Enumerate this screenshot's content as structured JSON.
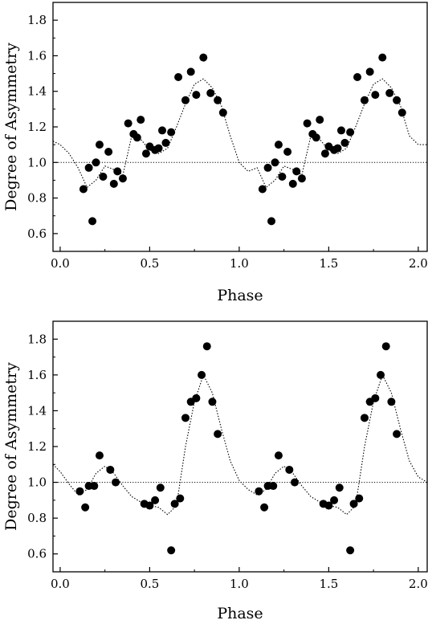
{
  "chart_data": [
    {
      "type": "scatter",
      "xlabel": "Phase",
      "ylabel": "Degree of Asymmetry",
      "xlim": [
        -0.04,
        2.05
      ],
      "ylim": [
        0.5,
        1.9
      ],
      "xticks": [
        0.0,
        0.5,
        1.0,
        1.5,
        2.0
      ],
      "xtick_labels": [
        "0.0",
        "0.5",
        "1.0",
        "1.5",
        "2.0"
      ],
      "yticks": [
        0.6,
        0.8,
        1.0,
        1.2,
        1.4,
        1.6,
        1.8
      ],
      "ytick_labels": [
        "0.6",
        "0.8",
        "1.0",
        "1.2",
        "1.4",
        "1.6",
        "1.8"
      ],
      "reference_line": 1.0,
      "grid": false,
      "series": [
        {
          "kind": "points",
          "x": [
            0.13,
            0.16,
            0.18,
            0.2,
            0.22,
            0.24,
            0.27,
            0.3,
            0.32,
            0.35,
            0.38,
            0.41,
            0.43,
            0.45,
            0.48,
            0.5,
            0.53,
            0.55,
            0.57,
            0.59,
            0.62,
            0.66,
            0.7,
            0.73,
            0.76,
            0.8,
            0.84,
            0.88,
            0.91,
            1.13,
            1.16,
            1.18,
            1.2,
            1.22,
            1.24,
            1.27,
            1.3,
            1.32,
            1.35,
            1.38,
            1.41,
            1.43,
            1.45,
            1.48,
            1.5,
            1.53,
            1.55,
            1.57,
            1.59,
            1.62,
            1.66,
            1.7,
            1.73,
            1.76,
            1.8,
            1.84,
            1.88,
            1.91
          ],
          "y": [
            0.85,
            0.97,
            0.67,
            1.0,
            1.1,
            0.92,
            1.06,
            0.88,
            0.95,
            0.91,
            1.22,
            1.16,
            1.14,
            1.24,
            1.05,
            1.09,
            1.07,
            1.08,
            1.18,
            1.11,
            1.17,
            1.48,
            1.35,
            1.51,
            1.38,
            1.59,
            1.39,
            1.35,
            1.28,
            0.85,
            0.97,
            0.67,
            1.0,
            1.1,
            0.92,
            1.06,
            0.88,
            0.95,
            0.91,
            1.22,
            1.16,
            1.14,
            1.24,
            1.05,
            1.09,
            1.07,
            1.08,
            1.18,
            1.11,
            1.17,
            1.48,
            1.35,
            1.51,
            1.38,
            1.59,
            1.39,
            1.35,
            1.28
          ]
        },
        {
          "kind": "dotted-fit",
          "x": [
            -0.04,
            0.0,
            0.05,
            0.1,
            0.15,
            0.2,
            0.25,
            0.3,
            0.35,
            0.4,
            0.45,
            0.5,
            0.55,
            0.6,
            0.65,
            0.7,
            0.75,
            0.8,
            0.85,
            0.9,
            0.95,
            1.0,
            1.05,
            1.1,
            1.15,
            1.2,
            1.25,
            1.3,
            1.35,
            1.4,
            1.45,
            1.5,
            1.55,
            1.6,
            1.65,
            1.7,
            1.75,
            1.8,
            1.85,
            1.9,
            1.95,
            2.0,
            2.05
          ],
          "y": [
            1.12,
            1.1,
            1.05,
            0.97,
            0.86,
            0.9,
            0.98,
            0.96,
            0.93,
            1.15,
            1.13,
            1.07,
            1.05,
            1.08,
            1.2,
            1.33,
            1.44,
            1.47,
            1.42,
            1.32,
            1.15,
            1.0,
            0.95,
            0.97,
            0.86,
            0.9,
            0.98,
            0.96,
            0.93,
            1.15,
            1.13,
            1.07,
            1.05,
            1.08,
            1.2,
            1.33,
            1.44,
            1.47,
            1.42,
            1.32,
            1.15,
            1.1,
            1.1
          ]
        }
      ]
    },
    {
      "type": "scatter",
      "xlabel": "Phase",
      "ylabel": "Degree of Asymmetry",
      "xlim": [
        -0.04,
        2.05
      ],
      "ylim": [
        0.5,
        1.9
      ],
      "xticks": [
        0.0,
        0.5,
        1.0,
        1.5,
        2.0
      ],
      "xtick_labels": [
        "0.0",
        "0.5",
        "1.0",
        "1.5",
        "2.0"
      ],
      "yticks": [
        0.6,
        0.8,
        1.0,
        1.2,
        1.4,
        1.6,
        1.8
      ],
      "ytick_labels": [
        "0.6",
        "0.8",
        "1.0",
        "1.2",
        "1.4",
        "1.6",
        "1.8"
      ],
      "reference_line": 1.0,
      "grid": false,
      "series": [
        {
          "kind": "points",
          "x": [
            0.11,
            0.14,
            0.16,
            0.19,
            0.22,
            0.28,
            0.31,
            0.47,
            0.5,
            0.53,
            0.56,
            0.62,
            0.64,
            0.67,
            0.7,
            0.73,
            0.76,
            0.79,
            0.82,
            0.85,
            0.88,
            1.11,
            1.14,
            1.16,
            1.19,
            1.22,
            1.28,
            1.31,
            1.47,
            1.5,
            1.53,
            1.56,
            1.62,
            1.64,
            1.67,
            1.7,
            1.73,
            1.76,
            1.79,
            1.82,
            1.85,
            1.88
          ],
          "y": [
            0.95,
            0.86,
            0.98,
            0.98,
            1.15,
            1.07,
            1.0,
            0.88,
            0.87,
            0.9,
            0.97,
            0.62,
            0.88,
            0.91,
            1.36,
            1.45,
            1.47,
            1.6,
            1.76,
            1.45,
            1.27,
            0.95,
            0.86,
            0.98,
            0.98,
            1.15,
            1.07,
            1.0,
            0.88,
            0.87,
            0.9,
            0.97,
            0.62,
            0.88,
            0.91,
            1.36,
            1.45,
            1.47,
            1.6,
            1.76,
            1.45,
            1.27
          ]
        },
        {
          "kind": "dotted-fit",
          "x": [
            -0.04,
            0.0,
            0.05,
            0.1,
            0.15,
            0.2,
            0.25,
            0.3,
            0.35,
            0.4,
            0.45,
            0.5,
            0.55,
            0.6,
            0.65,
            0.7,
            0.75,
            0.8,
            0.85,
            0.9,
            0.95,
            1.0,
            1.05,
            1.1,
            1.15,
            1.2,
            1.25,
            1.3,
            1.35,
            1.4,
            1.45,
            1.5,
            1.55,
            1.6,
            1.65,
            1.7,
            1.75,
            1.8,
            1.85,
            1.9,
            1.95,
            2.0,
            2.05
          ],
          "y": [
            1.1,
            1.06,
            0.99,
            0.93,
            0.96,
            1.05,
            1.09,
            1.05,
            0.98,
            0.92,
            0.89,
            0.87,
            0.86,
            0.82,
            0.87,
            1.2,
            1.45,
            1.6,
            1.5,
            1.3,
            1.12,
            1.01,
            0.96,
            0.93,
            0.96,
            1.05,
            1.09,
            1.05,
            0.98,
            0.92,
            0.89,
            0.87,
            0.86,
            0.82,
            0.87,
            1.2,
            1.45,
            1.6,
            1.5,
            1.3,
            1.12,
            1.03,
            1.0
          ]
        }
      ]
    }
  ]
}
